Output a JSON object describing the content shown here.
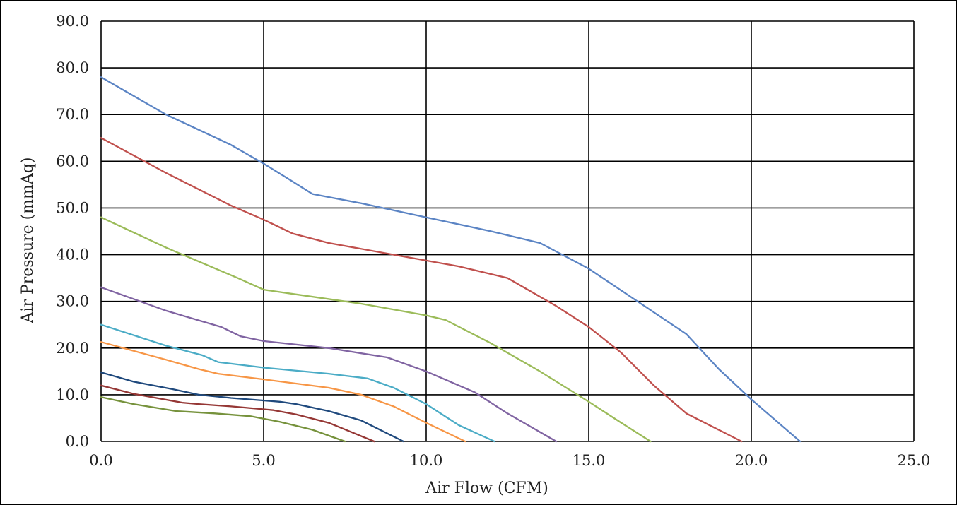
{
  "chart_data": {
    "type": "line",
    "xlabel": "Air Flow (CFM)",
    "ylabel": "Air Pressure (mmAq)",
    "xlim": [
      0,
      25
    ],
    "ylim": [
      0,
      90
    ],
    "x_ticks": [
      "0.0",
      "5.0",
      "10.0",
      "15.0",
      "20.0",
      "25.0"
    ],
    "y_ticks": [
      "0.0",
      "10.0",
      "20.0",
      "30.0",
      "40.0",
      "50.0",
      "60.0",
      "70.0",
      "80.0",
      "90.0"
    ],
    "grid": true,
    "series": [
      {
        "color": "#5B84C4",
        "points": [
          [
            0,
            78
          ],
          [
            2,
            70
          ],
          [
            4,
            63.5
          ],
          [
            5,
            59.5
          ],
          [
            5.7,
            56.5
          ],
          [
            6.5,
            53
          ],
          [
            8,
            51
          ],
          [
            10,
            48
          ],
          [
            12,
            45
          ],
          [
            13.5,
            42.5
          ],
          [
            15,
            37
          ],
          [
            16.5,
            30
          ],
          [
            18,
            23
          ],
          [
            19,
            15.5
          ],
          [
            20,
            9
          ],
          [
            21.5,
            0
          ]
        ]
      },
      {
        "color": "#C0504D",
        "points": [
          [
            0,
            65
          ],
          [
            2,
            57.5
          ],
          [
            4,
            50.5
          ],
          [
            5,
            47.5
          ],
          [
            5.9,
            44.5
          ],
          [
            7,
            42.5
          ],
          [
            9,
            40
          ],
          [
            11,
            37.5
          ],
          [
            12.5,
            35
          ],
          [
            14,
            29
          ],
          [
            15,
            24.5
          ],
          [
            16,
            19
          ],
          [
            17,
            12
          ],
          [
            18,
            6
          ],
          [
            19.7,
            0
          ]
        ]
      },
      {
        "color": "#9BBB59",
        "points": [
          [
            0,
            48
          ],
          [
            2,
            41.5
          ],
          [
            4.2,
            35
          ],
          [
            5,
            32.5
          ],
          [
            6,
            31.5
          ],
          [
            8,
            29.5
          ],
          [
            10,
            27
          ],
          [
            10.6,
            26
          ],
          [
            12,
            21
          ],
          [
            13.5,
            15
          ],
          [
            15,
            8.5
          ],
          [
            16,
            4
          ],
          [
            16.9,
            0
          ]
        ]
      },
      {
        "color": "#8064A2",
        "points": [
          [
            0,
            33
          ],
          [
            2,
            28
          ],
          [
            3.7,
            24.5
          ],
          [
            4.3,
            22.5
          ],
          [
            5,
            21.5
          ],
          [
            7,
            20
          ],
          [
            8.8,
            18
          ],
          [
            10,
            15
          ],
          [
            11.5,
            10.5
          ],
          [
            12.5,
            6
          ],
          [
            14,
            0
          ]
        ]
      },
      {
        "color": "#4BACC6",
        "points": [
          [
            0,
            25
          ],
          [
            2,
            20.5
          ],
          [
            3.1,
            18.5
          ],
          [
            3.6,
            17
          ],
          [
            5,
            15.8
          ],
          [
            7,
            14.5
          ],
          [
            8.2,
            13.5
          ],
          [
            9,
            11.5
          ],
          [
            10,
            8
          ],
          [
            11,
            3.5
          ],
          [
            12.1,
            0
          ]
        ]
      },
      {
        "color": "#F79646",
        "points": [
          [
            0,
            21.3
          ],
          [
            2,
            17.5
          ],
          [
            3,
            15.5
          ],
          [
            3.6,
            14.5
          ],
          [
            5,
            13.3
          ],
          [
            7,
            11.5
          ],
          [
            8,
            10
          ],
          [
            9,
            7.5
          ],
          [
            10,
            4
          ],
          [
            11.2,
            0
          ]
        ]
      },
      {
        "color": "#1F497D",
        "points": [
          [
            0,
            14.8
          ],
          [
            1,
            12.8
          ],
          [
            2.2,
            11.2
          ],
          [
            3,
            10
          ],
          [
            4,
            9.3
          ],
          [
            5.5,
            8.5
          ],
          [
            6,
            8
          ],
          [
            7,
            6.5
          ],
          [
            8,
            4.5
          ],
          [
            9.3,
            0
          ]
        ]
      },
      {
        "color": "#953735",
        "points": [
          [
            0,
            12
          ],
          [
            1,
            10.2
          ],
          [
            2.5,
            8.3
          ],
          [
            3,
            8
          ],
          [
            4,
            7.5
          ],
          [
            5.3,
            6.7
          ],
          [
            6,
            5.8
          ],
          [
            7,
            4
          ],
          [
            8.4,
            0
          ]
        ]
      },
      {
        "color": "#76923C",
        "points": [
          [
            0,
            9.5
          ],
          [
            1,
            8
          ],
          [
            2.3,
            6.5
          ],
          [
            3.5,
            6
          ],
          [
            4.6,
            5.4
          ],
          [
            5.5,
            4.2
          ],
          [
            6.5,
            2.5
          ],
          [
            7.5,
            0
          ]
        ]
      }
    ]
  }
}
